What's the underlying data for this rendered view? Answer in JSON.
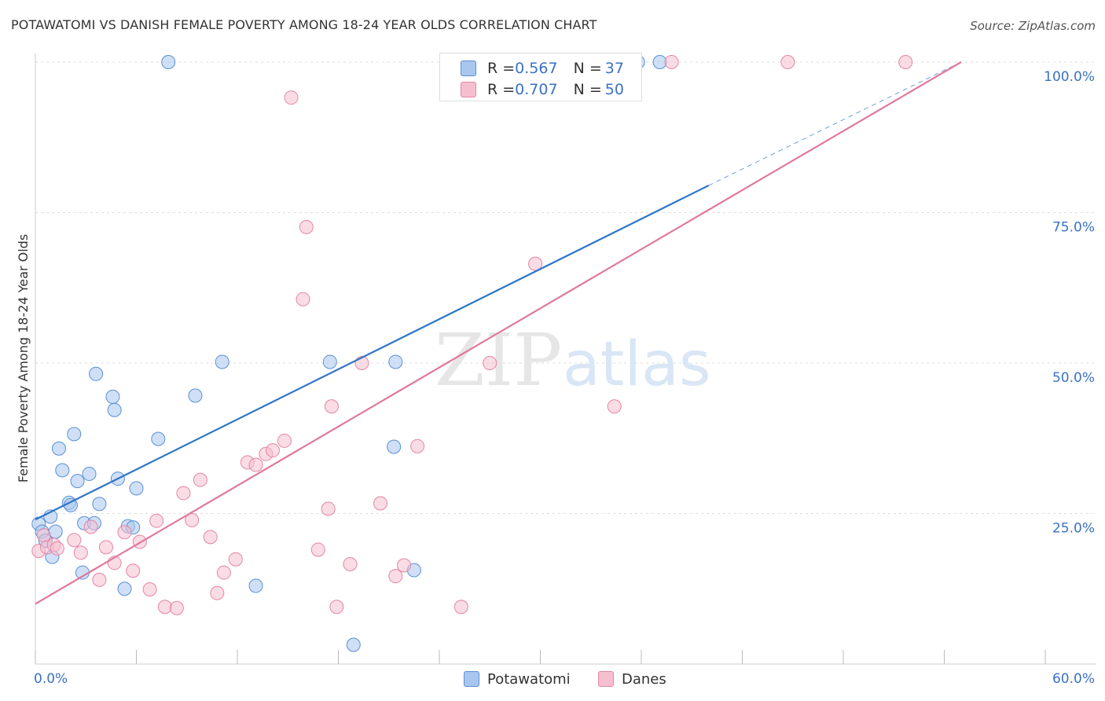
{
  "title": "POTAWATOMI VS DANISH FEMALE POVERTY AMONG 18-24 YEAR OLDS CORRELATION CHART",
  "source": "Source: ZipAtlas.com",
  "watermark": {
    "zip": "ZIP",
    "atlas": "atlas"
  },
  "stats": [
    {
      "r_label": "R = ",
      "r_value": "0.567",
      "n_label": "N = ",
      "n_value": "37",
      "color": "#a8c6ee",
      "border": "#5b8fd6"
    },
    {
      "r_label": "R = ",
      "r_value": "0.707",
      "n_label": "N = ",
      "n_value": "50",
      "color": "#f6bfd0",
      "border": "#e386a6"
    }
  ],
  "legend": [
    {
      "name": "Potawatomi",
      "color": "#a8c6ee",
      "border": "#5b8fd6"
    },
    {
      "name": "Danes",
      "color": "#f6bfd0",
      "border": "#e386a6"
    }
  ],
  "chart_data": {
    "type": "scatter",
    "title": "POTAWATOMI VS DANISH FEMALE POVERTY AMONG 18-24 YEAR OLDS CORRELATION CHART",
    "xlabel": "",
    "ylabel": "Female Poverty Among 18-24 Year Olds",
    "xlim": [
      0,
      60
    ],
    "ylim": [
      0,
      100
    ],
    "x_tick_labels": [
      "0.0%",
      "60.0%"
    ],
    "y_tick_values": [
      25,
      50,
      75,
      100
    ],
    "y_tick_labels": [
      "25.0%",
      "50.0%",
      "75.0%",
      "100.0%"
    ],
    "grid": true,
    "legend_position": "bottom",
    "series": [
      {
        "name": "Potawatomi",
        "fill": "#a8c6ee",
        "stroke": "#5b8fd6",
        "line_color": "#2f74c8",
        "trend": {
          "x0": 0,
          "y0": 24.0,
          "x1": 40,
          "y1": 79.5,
          "dash_to_x": 55,
          "dash_to_y": 100
        },
        "points": [
          [
            0.2,
            23.3
          ],
          [
            0.4,
            22.0
          ],
          [
            0.6,
            20.5
          ],
          [
            0.9,
            24.5
          ],
          [
            1.0,
            17.8
          ],
          [
            1.2,
            22.0
          ],
          [
            1.4,
            35.8
          ],
          [
            1.6,
            32.2
          ],
          [
            2.0,
            26.8
          ],
          [
            2.1,
            26.4
          ],
          [
            2.3,
            38.2
          ],
          [
            2.5,
            30.4
          ],
          [
            2.8,
            15.2
          ],
          [
            2.9,
            23.4
          ],
          [
            3.2,
            31.6
          ],
          [
            3.5,
            23.4
          ],
          [
            3.8,
            26.6
          ],
          [
            3.6,
            48.2
          ],
          [
            4.6,
            44.4
          ],
          [
            4.7,
            42.2
          ],
          [
            4.9,
            30.8
          ],
          [
            5.3,
            12.5
          ],
          [
            5.5,
            22.9
          ],
          [
            5.8,
            22.7
          ],
          [
            6.0,
            29.2
          ],
          [
            7.3,
            37.4
          ],
          [
            7.9,
            100.0
          ],
          [
            9.5,
            44.6
          ],
          [
            11.1,
            50.2
          ],
          [
            13.1,
            13.0
          ],
          [
            17.5,
            50.2
          ],
          [
            18.9,
            3.2
          ],
          [
            21.3,
            36.1
          ],
          [
            21.4,
            50.2
          ],
          [
            22.5,
            15.6
          ],
          [
            35.8,
            100.0
          ],
          [
            37.1,
            100.0
          ]
        ]
      },
      {
        "name": "Danes",
        "fill": "#f6bfd0",
        "stroke": "#e386a6",
        "line_color": "#e0789c",
        "trend": {
          "x0": 0,
          "y0": 10.0,
          "x1": 55,
          "y1": 100
        },
        "points": [
          [
            0.2,
            18.8
          ],
          [
            0.5,
            21.4
          ],
          [
            0.7,
            19.4
          ],
          [
            1.1,
            19.8
          ],
          [
            1.3,
            19.2
          ],
          [
            2.3,
            20.6
          ],
          [
            2.7,
            18.5
          ],
          [
            3.3,
            22.8
          ],
          [
            3.8,
            14.0
          ],
          [
            4.2,
            19.4
          ],
          [
            4.7,
            16.8
          ],
          [
            5.3,
            21.9
          ],
          [
            5.8,
            15.5
          ],
          [
            6.2,
            20.3
          ],
          [
            6.8,
            12.4
          ],
          [
            7.2,
            23.8
          ],
          [
            7.7,
            9.5
          ],
          [
            8.4,
            9.3
          ],
          [
            8.8,
            28.4
          ],
          [
            9.3,
            23.9
          ],
          [
            9.8,
            30.6
          ],
          [
            10.4,
            21.1
          ],
          [
            10.8,
            11.8
          ],
          [
            11.2,
            15.2
          ],
          [
            11.9,
            17.4
          ],
          [
            12.6,
            33.5
          ],
          [
            13.1,
            33.1
          ],
          [
            13.7,
            34.9
          ],
          [
            14.1,
            35.5
          ],
          [
            14.8,
            37.1
          ],
          [
            15.2,
            94.1
          ],
          [
            15.9,
            60.6
          ],
          [
            16.1,
            72.6
          ],
          [
            16.8,
            19.0
          ],
          [
            17.4,
            25.8
          ],
          [
            17.6,
            42.8
          ],
          [
            17.9,
            9.5
          ],
          [
            18.7,
            16.6
          ],
          [
            19.4,
            50.0
          ],
          [
            20.5,
            26.7
          ],
          [
            21.4,
            14.6
          ],
          [
            21.9,
            16.4
          ],
          [
            22.7,
            36.2
          ],
          [
            25.3,
            9.5
          ],
          [
            25.8,
            100.0
          ],
          [
            27.0,
            50.0
          ],
          [
            29.7,
            66.5
          ],
          [
            34.4,
            42.8
          ],
          [
            37.8,
            100.0
          ],
          [
            44.7,
            100.0
          ],
          [
            51.7,
            100.0
          ]
        ]
      }
    ]
  }
}
